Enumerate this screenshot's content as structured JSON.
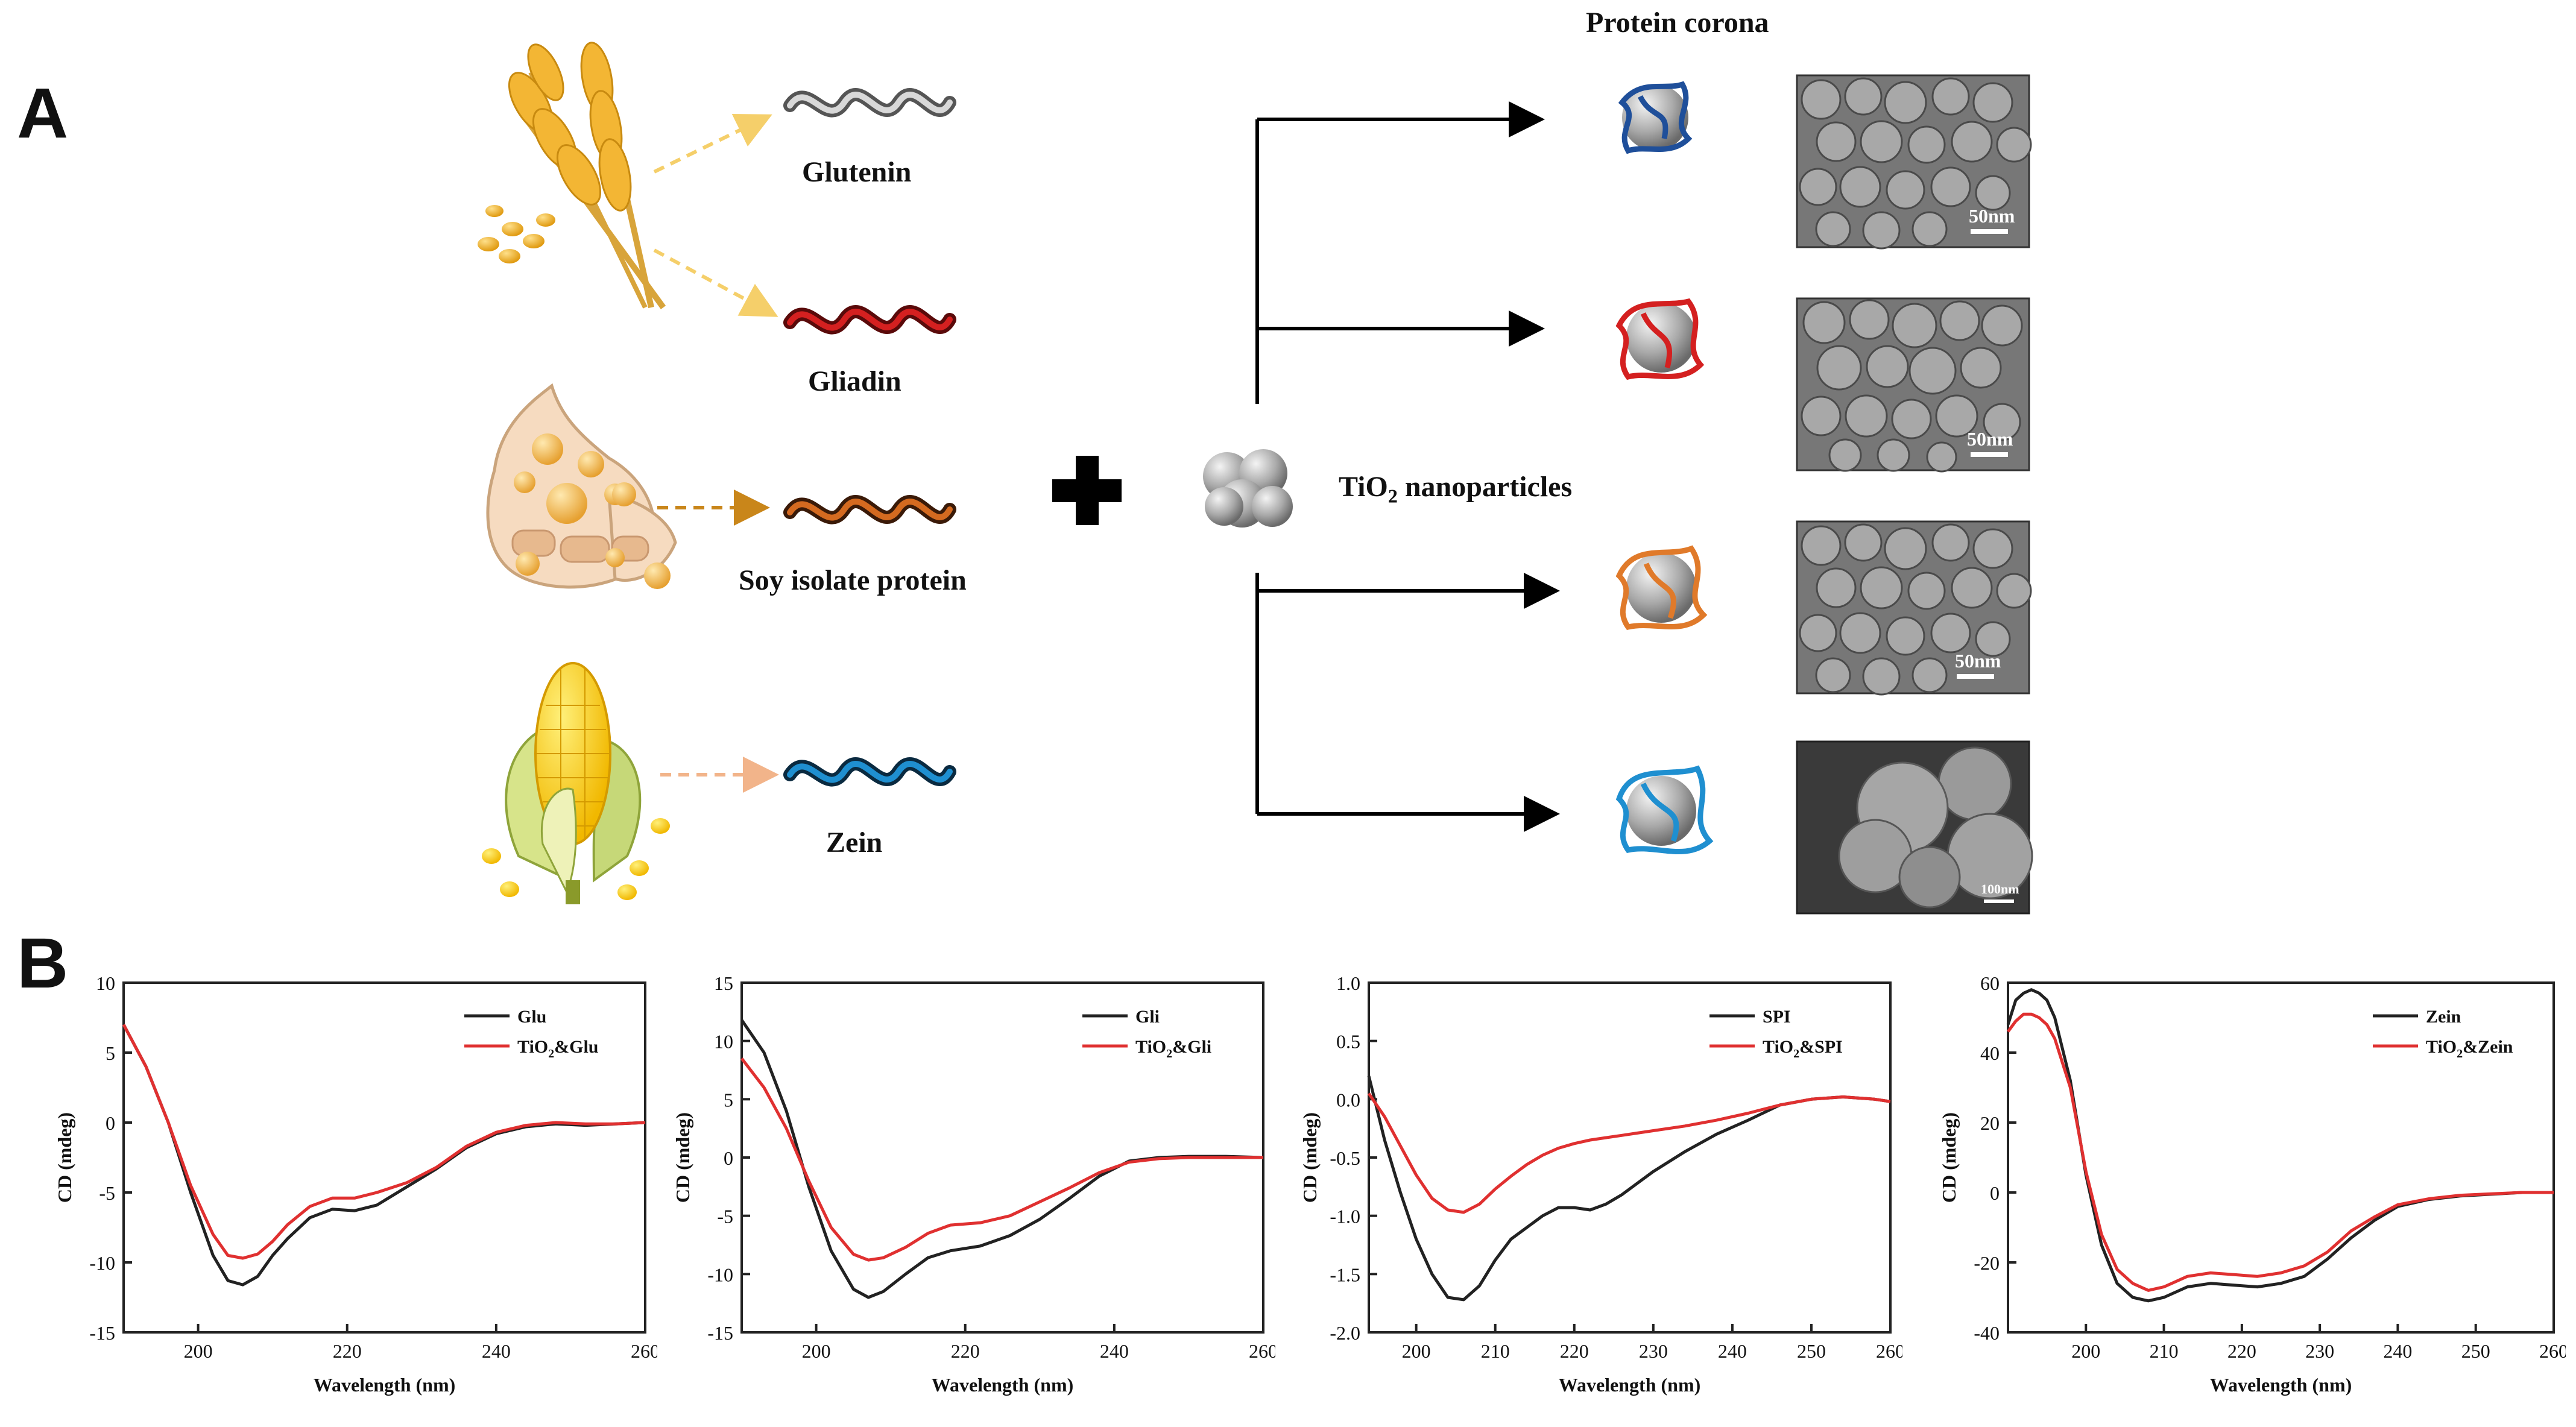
{
  "panels": {
    "a": "A",
    "b": "B"
  },
  "proteins": {
    "glutenin": "Glutenin",
    "gliadin": "Gliadin",
    "spi": "Soy isolate protein",
    "zein": "Zein"
  },
  "plus_symbol": "+",
  "tio2": {
    "main": "TiO",
    "sub": "2",
    "rest": " nanoparticles"
  },
  "corona_title": "Protein corona",
  "sem_scales": [
    "50nm",
    "50nm",
    "50nm",
    "100nm"
  ],
  "colors": {
    "glutenin": "#1f4f9a",
    "gliadin": "#d42020",
    "spi": "#e07a2a",
    "zein": "#1f8fd0",
    "black_series": "#222222",
    "red_series": "#e03030"
  },
  "chart_data": [
    {
      "type": "line",
      "xlabel": "Wavelength (nm)",
      "ylabel": "CD (mdeg)",
      "xlim": [
        190,
        260
      ],
      "ylim": [
        -15,
        10
      ],
      "xticks": [
        200,
        220,
        240,
        260
      ],
      "yticks": [
        10,
        5,
        0,
        -5,
        -10,
        -15
      ],
      "legend_position": "top-right",
      "series": [
        {
          "name": "Glu",
          "color": "#222222",
          "x": [
            190,
            193,
            196,
            199,
            202,
            204,
            206,
            208,
            210,
            212,
            215,
            218,
            221,
            224,
            228,
            232,
            236,
            240,
            244,
            248,
            252,
            256,
            260
          ],
          "y": [
            7,
            4,
            0,
            -5,
            -9.5,
            -11.3,
            -11.6,
            -11,
            -9.5,
            -8.3,
            -6.8,
            -6.2,
            -6.3,
            -5.9,
            -4.6,
            -3.3,
            -1.8,
            -0.8,
            -0.3,
            -0.1,
            -0.2,
            -0.1,
            0
          ]
        },
        {
          "name": "TiO&Glu",
          "sub": "2",
          "color": "#e03030",
          "x": [
            190,
            193,
            196,
            199,
            202,
            204,
            206,
            208,
            210,
            212,
            215,
            218,
            221,
            224,
            228,
            232,
            236,
            240,
            244,
            248,
            252,
            256,
            260
          ],
          "y": [
            7,
            4,
            0,
            -4.5,
            -8,
            -9.5,
            -9.7,
            -9.4,
            -8.5,
            -7.3,
            -6,
            -5.4,
            -5.4,
            -5,
            -4.3,
            -3.2,
            -1.7,
            -0.7,
            -0.2,
            0,
            -0.1,
            -0.1,
            0
          ]
        }
      ]
    },
    {
      "type": "line",
      "xlabel": "Wavelength (nm)",
      "ylabel": "CD (mdeg)",
      "xlim": [
        190,
        260
      ],
      "ylim": [
        -15,
        15
      ],
      "xticks": [
        200,
        220,
        240,
        260
      ],
      "yticks": [
        15,
        10,
        5,
        0,
        -5,
        -10,
        -15
      ],
      "legend_position": "top-right",
      "series": [
        {
          "name": "Gli",
          "color": "#222222",
          "x": [
            190,
            193,
            196,
            199,
            202,
            205,
            207,
            209,
            212,
            215,
            218,
            222,
            226,
            230,
            234,
            238,
            242,
            246,
            250,
            255,
            260
          ],
          "y": [
            11.8,
            9,
            4,
            -2.5,
            -8,
            -11.3,
            -12,
            -11.5,
            -10,
            -8.6,
            -8,
            -7.6,
            -6.7,
            -5.3,
            -3.5,
            -1.6,
            -0.3,
            0,
            0.1,
            0.1,
            0
          ]
        },
        {
          "name": "TiO&Gli",
          "sub": "2",
          "color": "#e03030",
          "x": [
            190,
            193,
            196,
            199,
            202,
            205,
            207,
            209,
            212,
            215,
            218,
            222,
            226,
            230,
            234,
            238,
            242,
            246,
            250,
            255,
            260
          ],
          "y": [
            8.5,
            6,
            2.5,
            -2,
            -6,
            -8.3,
            -8.8,
            -8.6,
            -7.7,
            -6.5,
            -5.8,
            -5.6,
            -5,
            -3.8,
            -2.6,
            -1.3,
            -0.4,
            -0.1,
            0,
            0,
            0
          ]
        }
      ]
    },
    {
      "type": "line",
      "xlabel": "Wavelength (nm)",
      "ylabel": "CD (mdeg)",
      "xlim": [
        194,
        260
      ],
      "ylim": [
        -2.0,
        1.0
      ],
      "xticks": [
        200,
        210,
        220,
        230,
        240,
        250,
        260
      ],
      "yticks": [
        1.0,
        0.5,
        0.0,
        -0.5,
        -1.0,
        -1.5,
        -2.0
      ],
      "legend_position": "top-right",
      "series": [
        {
          "name": "SPI",
          "color": "#222222",
          "x": [
            194,
            196,
            198,
            200,
            202,
            204,
            206,
            208,
            210,
            212,
            214,
            216,
            218,
            220,
            222,
            224,
            226,
            228,
            230,
            234,
            238,
            242,
            246,
            250,
            254,
            258,
            260
          ],
          "y": [
            0.2,
            -0.35,
            -0.8,
            -1.2,
            -1.5,
            -1.7,
            -1.72,
            -1.6,
            -1.38,
            -1.2,
            -1.1,
            -1,
            -0.93,
            -0.93,
            -0.95,
            -0.9,
            -0.82,
            -0.72,
            -0.62,
            -0.45,
            -0.3,
            -0.18,
            -0.05,
            0,
            0.02,
            0,
            -0.02
          ]
        },
        {
          "name": "TiO&SPI",
          "sub": "2",
          "color": "#e03030",
          "x": [
            194,
            196,
            198,
            200,
            202,
            204,
            206,
            208,
            210,
            212,
            214,
            216,
            218,
            220,
            222,
            224,
            226,
            228,
            230,
            234,
            238,
            242,
            246,
            250,
            254,
            258,
            260
          ],
          "y": [
            0.05,
            -0.15,
            -0.4,
            -0.65,
            -0.85,
            -0.95,
            -0.97,
            -0.9,
            -0.77,
            -0.66,
            -0.56,
            -0.48,
            -0.42,
            -0.38,
            -0.35,
            -0.33,
            -0.31,
            -0.29,
            -0.27,
            -0.23,
            -0.18,
            -0.12,
            -0.05,
            0,
            0.02,
            0,
            -0.02
          ]
        }
      ]
    },
    {
      "type": "line",
      "xlabel": "Wavelength (nm)",
      "ylabel": "CD (mdeg)",
      "xlim": [
        190,
        260
      ],
      "ylim": [
        -40,
        60
      ],
      "xticks": [
        200,
        210,
        220,
        230,
        240,
        250,
        260
      ],
      "yticks": [
        60,
        40,
        20,
        0,
        -20,
        -40
      ],
      "legend_position": "top-right",
      "series": [
        {
          "name": "Zein",
          "color": "#222222",
          "x": [
            190,
            191,
            192,
            193,
            194,
            195,
            196,
            198,
            200,
            202,
            204,
            206,
            208,
            210,
            213,
            216,
            219,
            222,
            225,
            228,
            231,
            234,
            237,
            240,
            244,
            248,
            252,
            256,
            260
          ],
          "y": [
            48,
            55,
            57,
            58,
            57,
            55,
            50,
            32,
            5,
            -15,
            -26,
            -30,
            -31,
            -30,
            -27,
            -26,
            -26.5,
            -27,
            -26,
            -24,
            -19,
            -13,
            -8,
            -4,
            -2,
            -1,
            -0.5,
            0,
            0
          ]
        },
        {
          "name": "TiO&Zein",
          "sub": "2",
          "color": "#e03030",
          "x": [
            190,
            191,
            192,
            193,
            194,
            195,
            196,
            198,
            200,
            202,
            204,
            206,
            208,
            210,
            213,
            216,
            219,
            222,
            225,
            228,
            231,
            234,
            237,
            240,
            244,
            248,
            252,
            256,
            260
          ],
          "y": [
            46,
            49,
            51,
            51,
            50,
            48,
            44,
            30,
            6,
            -12,
            -22,
            -26,
            -28,
            -27,
            -24,
            -23,
            -23.5,
            -24,
            -23,
            -21,
            -17,
            -11,
            -7,
            -3.5,
            -1.8,
            -0.8,
            -0.4,
            0,
            0
          ]
        }
      ]
    }
  ]
}
